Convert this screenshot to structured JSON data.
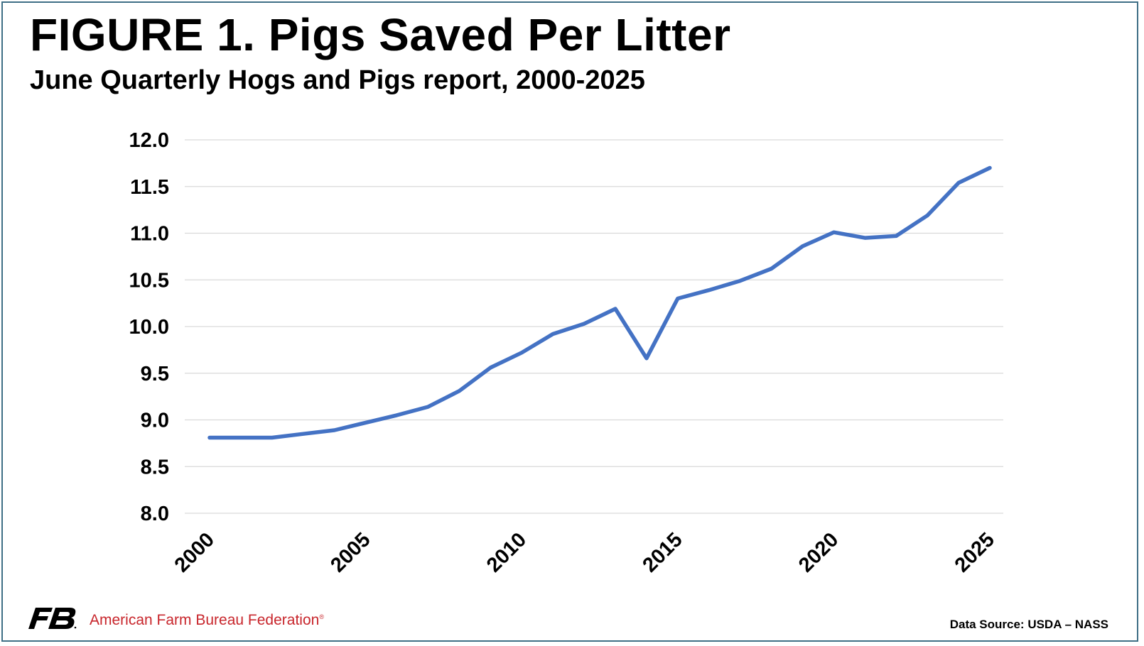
{
  "header": {
    "title": "FIGURE 1. Pigs Saved Per Litter",
    "subtitle": "June Quarterly Hogs and Pigs report, 2000-2025"
  },
  "footer": {
    "org_name": "American Farm Bureau Federation",
    "registered_mark": "®",
    "source": "Data Source:  USDA – NASS"
  },
  "colors": {
    "line": "#4472c4",
    "grid": "#d9d9d9",
    "frame": "#3f6f86",
    "org_text": "#c8262c"
  },
  "chart_data": {
    "type": "line",
    "title": "FIGURE 1. Pigs Saved Per Litter",
    "subtitle": "June Quarterly Hogs and Pigs report, 2000-2025",
    "xlabel": "",
    "ylabel": "",
    "x": [
      2000,
      2001,
      2002,
      2003,
      2004,
      2005,
      2006,
      2007,
      2008,
      2009,
      2010,
      2011,
      2012,
      2013,
      2014,
      2015,
      2016,
      2017,
      2018,
      2019,
      2020,
      2021,
      2022,
      2023,
      2024,
      2025
    ],
    "series": [
      {
        "values": [
          8.81,
          8.81,
          8.81,
          8.85,
          8.89,
          8.97,
          9.05,
          9.14,
          9.31,
          9.56,
          9.72,
          9.92,
          10.03,
          10.19,
          9.66,
          10.3,
          10.39,
          10.49,
          10.62,
          10.86,
          11.01,
          10.95,
          10.97,
          11.19,
          11.54,
          11.7
        ]
      }
    ],
    "xticks": [
      "2000",
      "2005",
      "2010",
      "2015",
      "2020",
      "2025"
    ],
    "yticks": [
      "8.0",
      "8.5",
      "9.0",
      "9.5",
      "10.0",
      "10.5",
      "11.0",
      "11.5",
      "12.0"
    ],
    "xlim": [
      2000,
      2025
    ],
    "ylim": [
      8.0,
      12.0
    ],
    "grid": true,
    "legend": "none"
  }
}
